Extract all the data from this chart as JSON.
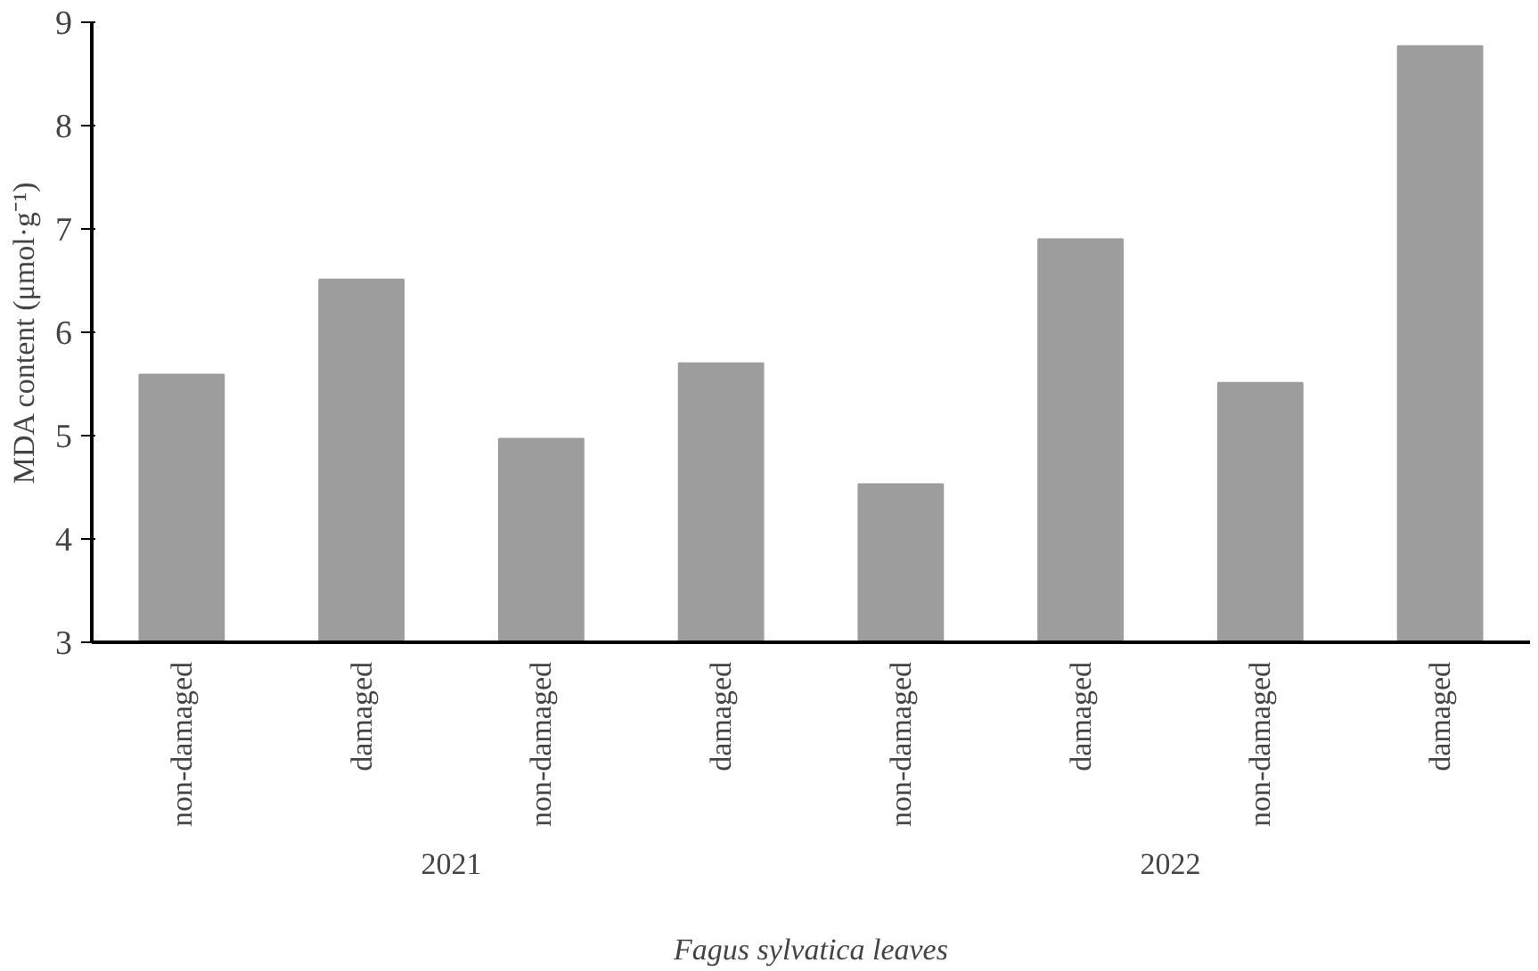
{
  "chart_data": {
    "type": "bar",
    "categories": [
      "non-damaged",
      "damaged",
      "non-damaged",
      "damaged",
      "non-damaged",
      "damaged",
      "non-damaged",
      "damaged"
    ],
    "values": [
      5.59,
      6.51,
      4.97,
      5.7,
      4.53,
      6.9,
      5.51,
      8.77
    ],
    "color": "#9d9d9d",
    "ylim": [
      3,
      9
    ],
    "yticks": [
      3,
      4,
      5,
      6,
      7,
      8,
      9
    ],
    "ylabel": "MDA content (μmol·g⁻¹)",
    "xlabel": "Fagus sylvatica leaves",
    "annotations": [
      "2021",
      "2022"
    ],
    "grid": false
  }
}
